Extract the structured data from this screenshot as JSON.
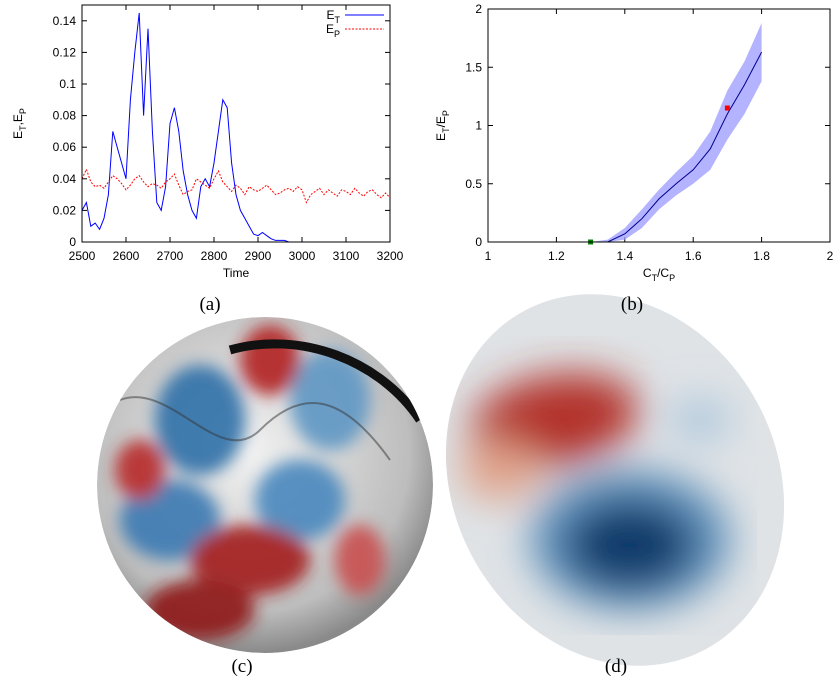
{
  "chart_data": [
    {
      "type": "line",
      "xlabel": "Time",
      "ylabel": "ET,EP",
      "x": [
        2500,
        2510,
        2520,
        2530,
        2540,
        2550,
        2560,
        2570,
        2580,
        2590,
        2600,
        2610,
        2620,
        2630,
        2640,
        2650,
        2660,
        2670,
        2680,
        2690,
        2700,
        2710,
        2720,
        2730,
        2740,
        2750,
        2760,
        2770,
        2780,
        2790,
        2800,
        2810,
        2820,
        2830,
        2840,
        2850,
        2860,
        2870,
        2880,
        2890,
        2900,
        2910,
        2920,
        2930,
        2940,
        2950,
        2960,
        2970,
        2980,
        2990,
        3000,
        3010,
        3020,
        3030,
        3040,
        3050,
        3060,
        3070,
        3080,
        3090,
        3100,
        3110,
        3120,
        3130,
        3140,
        3150,
        3160,
        3170,
        3180,
        3190,
        3200
      ],
      "series": [
        {
          "name": "ET",
          "color": "#0000ff",
          "dash": false,
          "values": [
            0.02,
            0.025,
            0.01,
            0.012,
            0.008,
            0.015,
            0.03,
            0.07,
            0.06,
            0.05,
            0.04,
            0.09,
            0.12,
            0.145,
            0.08,
            0.135,
            0.07,
            0.025,
            0.02,
            0.035,
            0.075,
            0.085,
            0.07,
            0.045,
            0.03,
            0.02,
            0.015,
            0.035,
            0.04,
            0.035,
            0.05,
            0.07,
            0.09,
            0.085,
            0.05,
            0.03,
            0.02,
            0.015,
            0.01,
            0.005,
            0.004,
            0.006,
            0.004,
            0.002,
            0.001,
            0.001,
            0.001,
            0,
            0,
            0,
            0,
            0,
            0,
            0,
            0,
            0,
            0,
            0,
            0,
            0,
            0,
            0,
            0,
            0,
            0,
            0,
            0,
            0,
            0,
            0,
            0
          ]
        },
        {
          "name": "EP",
          "color": "#ff0000",
          "dash": true,
          "values": [
            0.04,
            0.046,
            0.038,
            0.035,
            0.036,
            0.034,
            0.038,
            0.042,
            0.04,
            0.037,
            0.033,
            0.036,
            0.04,
            0.042,
            0.038,
            0.035,
            0.037,
            0.036,
            0.034,
            0.038,
            0.04,
            0.043,
            0.036,
            0.03,
            0.032,
            0.033,
            0.04,
            0.038,
            0.036,
            0.034,
            0.04,
            0.045,
            0.038,
            0.035,
            0.032,
            0.036,
            0.034,
            0.03,
            0.035,
            0.033,
            0.032,
            0.034,
            0.036,
            0.033,
            0.03,
            0.031,
            0.033,
            0.034,
            0.032,
            0.035,
            0.033,
            0.025,
            0.03,
            0.032,
            0.034,
            0.03,
            0.033,
            0.031,
            0.029,
            0.033,
            0.032,
            0.03,
            0.034,
            0.031,
            0.029,
            0.032,
            0.033,
            0.03,
            0.028,
            0.031,
            0.028
          ]
        }
      ],
      "xlim": [
        2500,
        3200
      ],
      "xticks": [
        2500,
        2600,
        2700,
        2800,
        2900,
        3000,
        3100,
        3200
      ],
      "ylim": [
        0,
        0.15
      ],
      "yticks": [
        0,
        0.02,
        0.04,
        0.06,
        0.08,
        0.1,
        0.12,
        0.14
      ],
      "legend": "top-right"
    },
    {
      "type": "band-line",
      "xlabel": "CT/CP",
      "ylabel": "ET/EP",
      "x": [
        1,
        1.05,
        1.1,
        1.15,
        1.2,
        1.25,
        1.3,
        1.35,
        1.4,
        1.45,
        1.5,
        1.55,
        1.6,
        1.65,
        1.7,
        1.75,
        1.8
      ],
      "series": [
        {
          "color": "#00008b",
          "band_color": "#9999ff",
          "values": [
            0,
            0,
            0,
            0,
            0,
            0,
            0,
            0,
            0.07,
            0.2,
            0.37,
            0.5,
            0.62,
            0.8,
            1.1,
            1.35,
            1.63
          ],
          "lower": [
            0,
            0,
            0,
            0,
            0,
            0,
            0,
            0,
            0.02,
            0.12,
            0.28,
            0.4,
            0.5,
            0.62,
            0.88,
            1.1,
            1.38
          ],
          "upper": [
            0,
            0,
            0,
            0,
            0,
            0,
            0,
            0.02,
            0.12,
            0.28,
            0.45,
            0.6,
            0.74,
            0.95,
            1.3,
            1.55,
            1.88
          ]
        }
      ],
      "points": [
        {
          "x": 1.3,
          "y": 0,
          "color": "#008000"
        },
        {
          "x": 1.7,
          "y": 1.15,
          "color": "#ff0000"
        }
      ],
      "xlim": [
        1,
        2
      ],
      "xticks": [
        1,
        1.2,
        1.4,
        1.6,
        1.8,
        2
      ],
      "ylim": [
        0,
        2
      ],
      "yticks": [
        0,
        0.5,
        1,
        1.5,
        2
      ]
    }
  ],
  "captions": [
    "(a)",
    "(b)",
    "(c)",
    "(d)"
  ]
}
